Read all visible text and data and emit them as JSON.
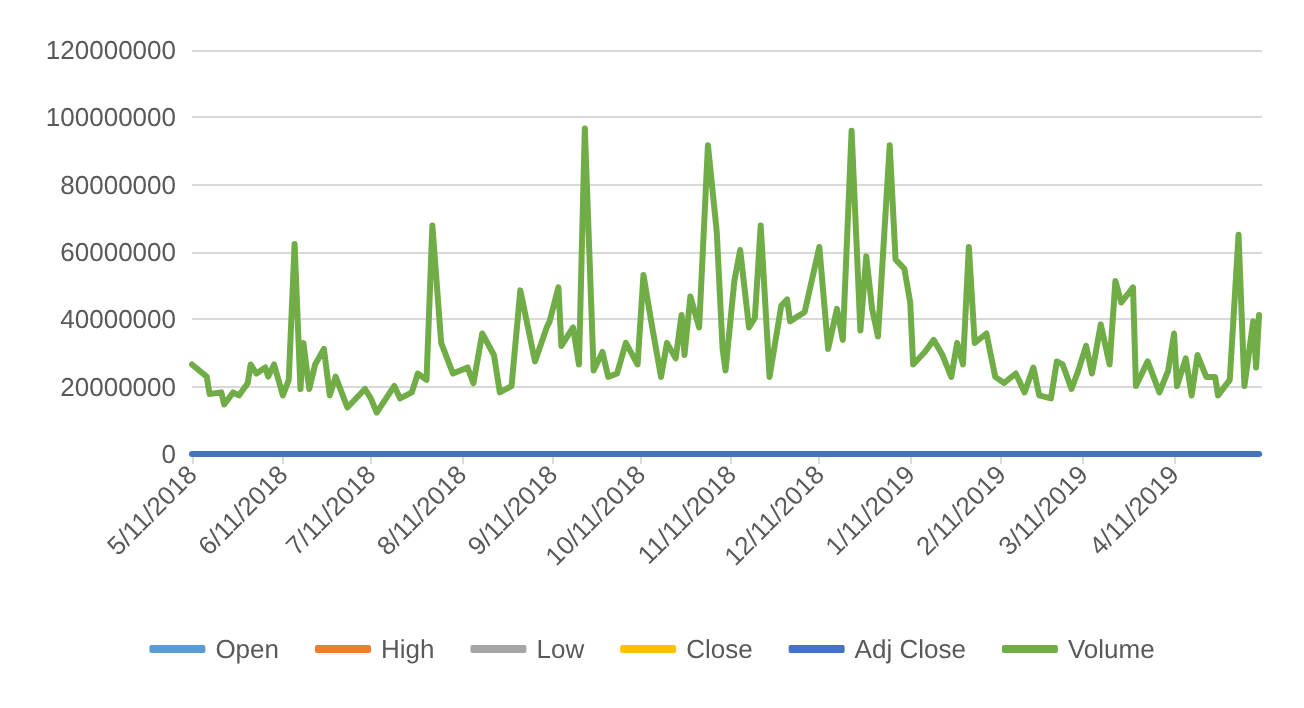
{
  "chart_data": {
    "type": "line",
    "x": [
      "2018-05-11",
      "2018-05-16",
      "2018-05-17",
      "2018-05-21",
      "2018-05-22",
      "2018-05-25",
      "2018-05-27",
      "2018-05-30",
      "2018-05-31",
      "2018-06-02",
      "2018-06-05",
      "2018-06-06",
      "2018-06-08",
      "2018-06-11",
      "2018-06-13",
      "2018-06-15",
      "2018-06-17",
      "2018-06-18",
      "2018-06-20",
      "2018-06-22",
      "2018-06-25",
      "2018-06-27",
      "2018-06-29",
      "2018-07-03",
      "2018-07-09",
      "2018-07-11",
      "2018-07-13",
      "2018-07-19",
      "2018-07-21",
      "2018-07-25",
      "2018-07-27",
      "2018-07-30",
      "2018-08-01",
      "2018-08-04",
      "2018-08-08",
      "2018-08-13",
      "2018-08-15",
      "2018-08-18",
      "2018-08-22",
      "2018-08-24",
      "2018-08-28",
      "2018-08-31",
      "2018-09-05",
      "2018-09-09",
      "2018-09-10",
      "2018-09-13",
      "2018-09-14",
      "2018-09-18",
      "2018-09-20",
      "2018-09-22",
      "2018-09-25",
      "2018-09-28",
      "2018-09-30",
      "2018-10-03",
      "2018-10-06",
      "2018-10-10",
      "2018-10-12",
      "2018-10-15",
      "2018-10-18",
      "2018-10-20",
      "2018-10-23",
      "2018-10-25",
      "2018-10-26",
      "2018-10-28",
      "2018-10-31",
      "2018-11-03",
      "2018-11-06",
      "2018-11-08",
      "2018-11-09",
      "2018-11-12",
      "2018-11-14",
      "2018-11-17",
      "2018-11-19",
      "2018-11-21",
      "2018-11-24",
      "2018-11-28",
      "2018-11-30",
      "2018-12-01",
      "2018-12-06",
      "2018-12-11",
      "2018-12-14",
      "2018-12-17",
      "2018-12-19",
      "2018-12-22",
      "2018-12-25",
      "2018-12-27",
      "2018-12-29",
      "2018-12-31",
      "2019-01-04",
      "2019-01-06",
      "2019-01-09",
      "2019-01-11",
      "2019-01-12",
      "2019-01-16",
      "2019-01-19",
      "2019-01-22",
      "2019-01-25",
      "2019-01-27",
      "2019-01-29",
      "2019-01-31",
      "2019-02-02",
      "2019-02-06",
      "2019-02-09",
      "2019-02-12",
      "2019-02-16",
      "2019-02-19",
      "2019-02-22",
      "2019-02-24",
      "2019-02-28",
      "2019-03-02",
      "2019-03-04",
      "2019-03-07",
      "2019-03-09",
      "2019-03-12",
      "2019-03-14",
      "2019-03-17",
      "2019-03-20",
      "2019-03-22",
      "2019-03-24",
      "2019-03-28",
      "2019-03-29",
      "2019-04-02",
      "2019-04-06",
      "2019-04-09",
      "2019-04-11",
      "2019-04-12",
      "2019-04-15",
      "2019-04-17",
      "2019-04-19",
      "2019-04-22",
      "2019-04-25",
      "2019-04-26",
      "2019-04-30",
      "2019-05-03",
      "2019-05-05",
      "2019-05-08",
      "2019-05-09",
      "2019-05-10"
    ],
    "series": [
      {
        "name": "Open",
        "color": "#5b9bd5",
        "values": [
          null,
          null,
          null,
          null,
          null,
          null,
          null,
          null,
          null,
          null,
          null,
          null,
          null,
          null,
          null,
          null,
          null,
          null,
          null,
          null,
          null,
          null,
          null,
          null,
          null,
          null,
          null,
          null,
          null,
          null,
          null,
          null,
          null,
          null,
          null,
          null,
          null,
          null,
          null,
          null,
          null,
          null,
          null,
          null,
          null,
          null,
          null,
          null,
          null,
          null,
          null,
          null,
          null,
          null,
          null,
          null,
          null,
          null,
          null,
          null,
          null,
          null,
          null,
          null,
          null,
          null,
          null,
          null,
          null,
          null,
          null,
          null,
          null,
          null,
          null,
          null,
          null,
          null,
          null,
          null,
          null,
          null,
          null,
          null,
          null,
          null,
          null,
          null,
          null,
          null,
          null,
          null,
          null,
          null,
          null,
          null,
          null,
          null,
          null,
          null,
          null,
          null,
          null,
          null,
          null,
          null,
          null,
          null,
          null,
          null,
          null,
          null,
          null,
          null,
          null,
          null,
          null,
          null,
          null,
          null,
          null,
          null,
          null,
          null,
          null,
          null,
          null,
          null,
          null,
          null,
          null,
          null,
          null,
          null,
          null,
          null,
          null,
          null
        ]
      },
      {
        "name": "High",
        "color": "#ed7d31",
        "values": [
          null,
          null,
          null,
          null,
          null,
          null,
          null,
          null,
          null,
          null,
          null,
          null,
          null,
          null,
          null,
          null,
          null,
          null,
          null,
          null,
          null,
          null,
          null,
          null,
          null,
          null,
          null,
          null,
          null,
          null,
          null,
          null,
          null,
          null,
          null,
          null,
          null,
          null,
          null,
          null,
          null,
          null,
          null,
          null,
          null,
          null,
          null,
          null,
          null,
          null,
          null,
          null,
          null,
          null,
          null,
          null,
          null,
          null,
          null,
          null,
          null,
          null,
          null,
          null,
          null,
          null,
          null,
          null,
          null,
          null,
          null,
          null,
          null,
          null,
          null,
          null,
          null,
          null,
          null,
          null,
          null,
          null,
          null,
          null,
          null,
          null,
          null,
          null,
          null,
          null,
          null,
          null,
          null,
          null,
          null,
          null,
          null,
          null,
          null,
          null,
          null,
          null,
          null,
          null,
          null,
          null,
          null,
          null,
          null,
          null,
          null,
          null,
          null,
          null,
          null,
          null,
          null,
          null,
          null,
          null,
          null,
          null,
          null,
          null,
          null,
          null,
          null,
          null,
          null,
          null,
          null,
          null,
          null,
          null,
          null,
          null,
          null,
          null
        ]
      },
      {
        "name": "Low",
        "color": "#a5a5a5",
        "values": [
          null,
          null,
          null,
          null,
          null,
          null,
          null,
          null,
          null,
          null,
          null,
          null,
          null,
          null,
          null,
          null,
          null,
          null,
          null,
          null,
          null,
          null,
          null,
          null,
          null,
          null,
          null,
          null,
          null,
          null,
          null,
          null,
          null,
          null,
          null,
          null,
          null,
          null,
          null,
          null,
          null,
          null,
          null,
          null,
          null,
          null,
          null,
          null,
          null,
          null,
          null,
          null,
          null,
          null,
          null,
          null,
          null,
          null,
          null,
          null,
          null,
          null,
          null,
          null,
          null,
          null,
          null,
          null,
          null,
          null,
          null,
          null,
          null,
          null,
          null,
          null,
          null,
          null,
          null,
          null,
          null,
          null,
          null,
          null,
          null,
          null,
          null,
          null,
          null,
          null,
          null,
          null,
          null,
          null,
          null,
          null,
          null,
          null,
          null,
          null,
          null,
          null,
          null,
          null,
          null,
          null,
          null,
          null,
          null,
          null,
          null,
          null,
          null,
          null,
          null,
          null,
          null,
          null,
          null,
          null,
          null,
          null,
          null,
          null,
          null,
          null,
          null,
          null,
          null,
          null,
          null,
          null,
          null,
          null,
          null,
          null,
          null,
          null
        ]
      },
      {
        "name": "Close",
        "color": "#ffc000",
        "values": [
          null,
          null,
          null,
          null,
          null,
          null,
          null,
          null,
          null,
          null,
          null,
          null,
          null,
          null,
          null,
          null,
          null,
          null,
          null,
          null,
          null,
          null,
          null,
          null,
          null,
          null,
          null,
          null,
          null,
          null,
          null,
          null,
          null,
          null,
          null,
          null,
          null,
          null,
          null,
          null,
          null,
          null,
          null,
          null,
          null,
          null,
          null,
          null,
          null,
          null,
          null,
          null,
          null,
          null,
          null,
          null,
          null,
          null,
          null,
          null,
          null,
          null,
          null,
          null,
          null,
          null,
          null,
          null,
          null,
          null,
          null,
          null,
          null,
          null,
          null,
          null,
          null,
          null,
          null,
          null,
          null,
          null,
          null,
          null,
          null,
          null,
          null,
          null,
          null,
          null,
          null,
          null,
          null,
          null,
          null,
          null,
          null,
          null,
          null,
          null,
          null,
          null,
          null,
          null,
          null,
          null,
          null,
          null,
          null,
          null,
          null,
          null,
          null,
          null,
          null,
          null,
          null,
          null,
          null,
          null,
          null,
          null,
          null,
          null,
          null,
          null,
          null,
          null,
          null,
          null,
          null,
          null,
          null,
          null,
          null,
          null,
          null,
          null
        ]
      },
      {
        "name": "Adj Close",
        "color": "#4472c4",
        "x": [
          "2018-05-11",
          "2019-05-10"
        ],
        "values": [
          0,
          0
        ]
      },
      {
        "name": "Volume",
        "color": "#70ad47",
        "values": [
          26600000,
          23000000,
          17800000,
          18300000,
          14700000,
          18300000,
          17400000,
          21000000,
          26600000,
          23900000,
          25700000,
          23000000,
          26600000,
          17400000,
          22000000,
          62400000,
          19300000,
          33000000,
          19300000,
          26600000,
          31200000,
          17400000,
          23000000,
          13800000,
          19300000,
          16500000,
          12300000,
          20200000,
          16500000,
          18300000,
          23900000,
          22000000,
          67900000,
          33000000,
          23900000,
          25700000,
          21000000,
          35800000,
          29400000,
          18300000,
          20200000,
          48600000,
          27500000,
          37600000,
          39400000,
          49500000,
          32100000,
          37600000,
          26600000,
          96700000,
          24800000,
          30300000,
          22900000,
          23900000,
          33000000,
          26600000,
          53200000,
          37600000,
          22900000,
          33000000,
          28400000,
          41300000,
          29400000,
          46800000,
          37600000,
          91700000,
          66000000,
          31200000,
          24800000,
          51400000,
          60600000,
          37600000,
          40400000,
          67900000,
          22900000,
          44000000,
          45900000,
          39400000,
          42200000,
          61500000,
          31200000,
          43100000,
          33900000,
          96000000,
          36700000,
          58700000,
          43100000,
          34900000,
          91700000,
          57800000,
          55000000,
          45000000,
          26600000,
          30300000,
          33900000,
          29400000,
          22900000,
          33000000,
          26600000,
          61500000,
          33000000,
          35800000,
          22900000,
          21100000,
          23900000,
          18300000,
          25700000,
          17400000,
          16500000,
          27500000,
          26600000,
          19300000,
          23900000,
          32100000,
          23900000,
          38500000,
          26600000,
          51400000,
          45000000,
          49500000,
          20200000,
          27500000,
          18300000,
          24800000,
          35800000,
          20200000,
          28400000,
          17400000,
          29400000,
          22900000,
          22900000,
          17400000,
          22000000,
          65100000,
          20200000,
          39400000,
          25700000,
          41300000
        ]
      }
    ],
    "xlim": [
      "2018-05-11",
      "2019-05-11"
    ],
    "xticks": [
      {
        "value": "2018-05-11",
        "label": "5/11/2018"
      },
      {
        "value": "2018-06-11",
        "label": "6/11/2018"
      },
      {
        "value": "2018-07-11",
        "label": "7/11/2018"
      },
      {
        "value": "2018-08-11",
        "label": "8/11/2018"
      },
      {
        "value": "2018-09-11",
        "label": "9/11/2018"
      },
      {
        "value": "2018-10-11",
        "label": "10/11/2018"
      },
      {
        "value": "2018-11-11",
        "label": "11/11/2018"
      },
      {
        "value": "2018-12-11",
        "label": "12/11/2018"
      },
      {
        "value": "2019-01-11",
        "label": "1/11/2019"
      },
      {
        "value": "2019-02-11",
        "label": "2/11/2019"
      },
      {
        "value": "2019-03-11",
        "label": "3/11/2019"
      },
      {
        "value": "2019-04-11",
        "label": "4/11/2019"
      }
    ],
    "ylim": [
      0,
      120000000
    ],
    "yticks": [
      0,
      20000000,
      40000000,
      60000000,
      80000000,
      100000000,
      120000000
    ],
    "grid": "y",
    "legend": "bottom",
    "marker": "none",
    "line_style": "solid"
  }
}
